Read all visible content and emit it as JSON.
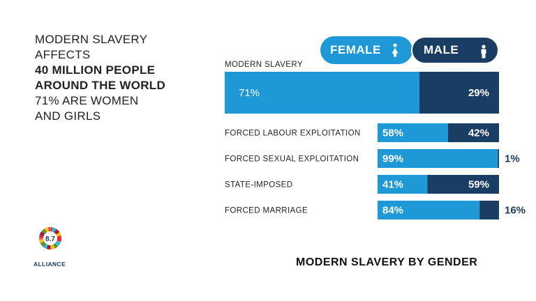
{
  "headline": {
    "line1": "MODERN SLAVERY",
    "line2": "AFFECTS",
    "line3": "40 MILLION PEOPLE",
    "line4": "AROUND THE WORLD",
    "line5": "71% ARE WOMEN",
    "line6": "AND GIRLS"
  },
  "legend": {
    "female_label": "FEMALE",
    "male_label": "MALE",
    "female_icon": "female-person-icon",
    "male_icon": "male-person-icon"
  },
  "colors": {
    "female": "#1e98d7",
    "male": "#1a3d63"
  },
  "chart_data": {
    "type": "bar",
    "stacked": true,
    "orientation": "horizontal",
    "title": "MODERN SLAVERY BY GENDER",
    "categories": [
      "MODERN SLAVERY",
      "FORCED LABOUR EXPLOITATION",
      "FORCED SEXUAL EXPLOITATION",
      "STATE-IMPOSED",
      "FORCED MARRIAGE"
    ],
    "series": [
      {
        "name": "FEMALE",
        "values": [
          71,
          58,
          99,
          41,
          84
        ],
        "labels": [
          "71%",
          "58%",
          "99%",
          "41%",
          "84%"
        ]
      },
      {
        "name": "MALE",
        "values": [
          29,
          42,
          1,
          59,
          16
        ],
        "labels": [
          "29%",
          "42%",
          "1%",
          "59%",
          "16%"
        ]
      }
    ],
    "xlim": [
      0,
      100
    ]
  },
  "logo": {
    "number": "8.7",
    "text": "ALLIANCE"
  }
}
